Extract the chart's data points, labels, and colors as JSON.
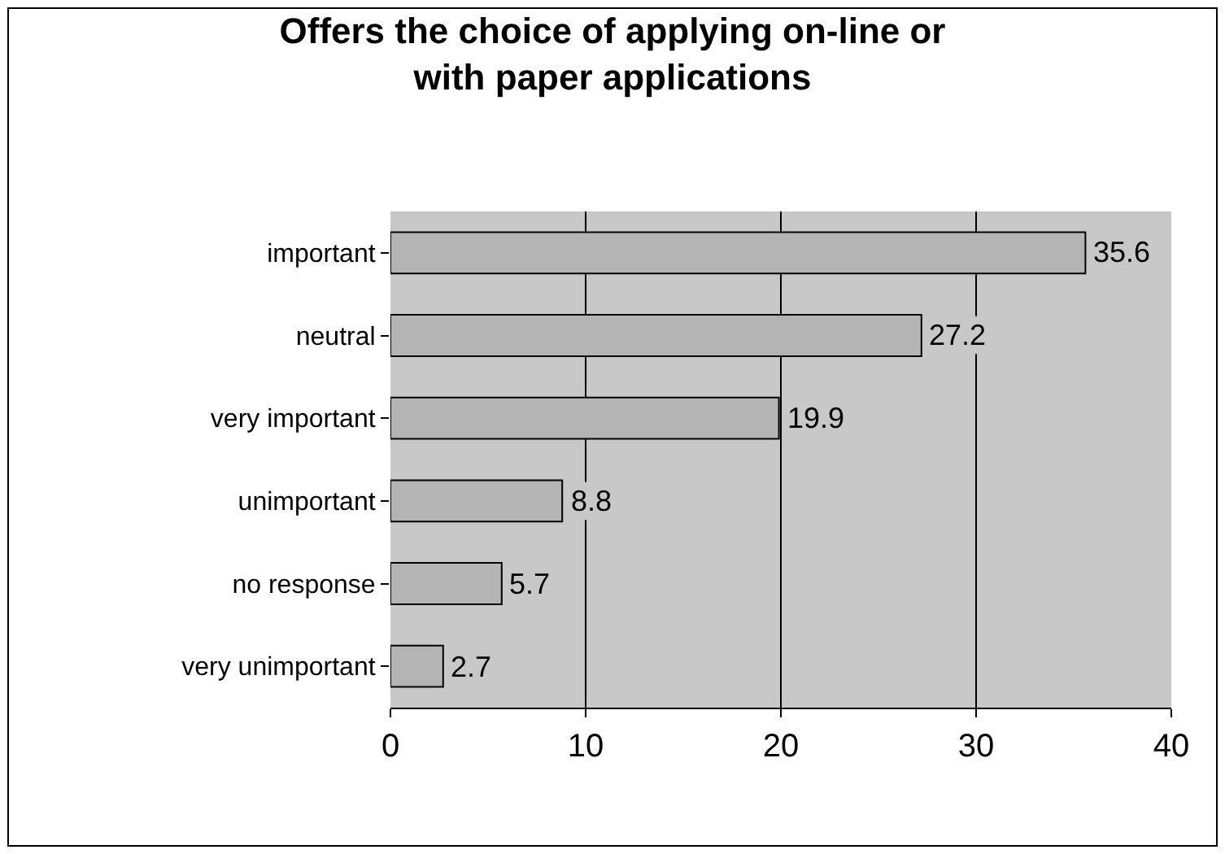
{
  "chart_data": {
    "type": "bar",
    "orientation": "horizontal",
    "title": "Offers the choice of applying on-line or with paper applications",
    "categories": [
      "important",
      "neutral",
      "very important",
      "unimportant",
      "no response",
      "very unimportant"
    ],
    "values": [
      35.6,
      27.2,
      19.9,
      8.8,
      5.7,
      2.7
    ],
    "color": "#b4b4b4",
    "xlim": [
      0,
      40
    ],
    "xticks": [
      0,
      10,
      20,
      30,
      40
    ],
    "grid": "x",
    "data_labels": true
  }
}
